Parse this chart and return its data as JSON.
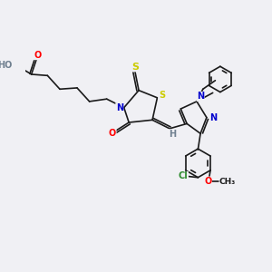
{
  "bg_color": "#f0f0f4",
  "line_color": "#1a1a1a",
  "atom_colors": {
    "O": "#ff0000",
    "N": "#0000cd",
    "S": "#cccc00",
    "Cl": "#2e8b2e",
    "H": "#708090",
    "C": "#1a1a1a"
  },
  "font_size": 7.0
}
